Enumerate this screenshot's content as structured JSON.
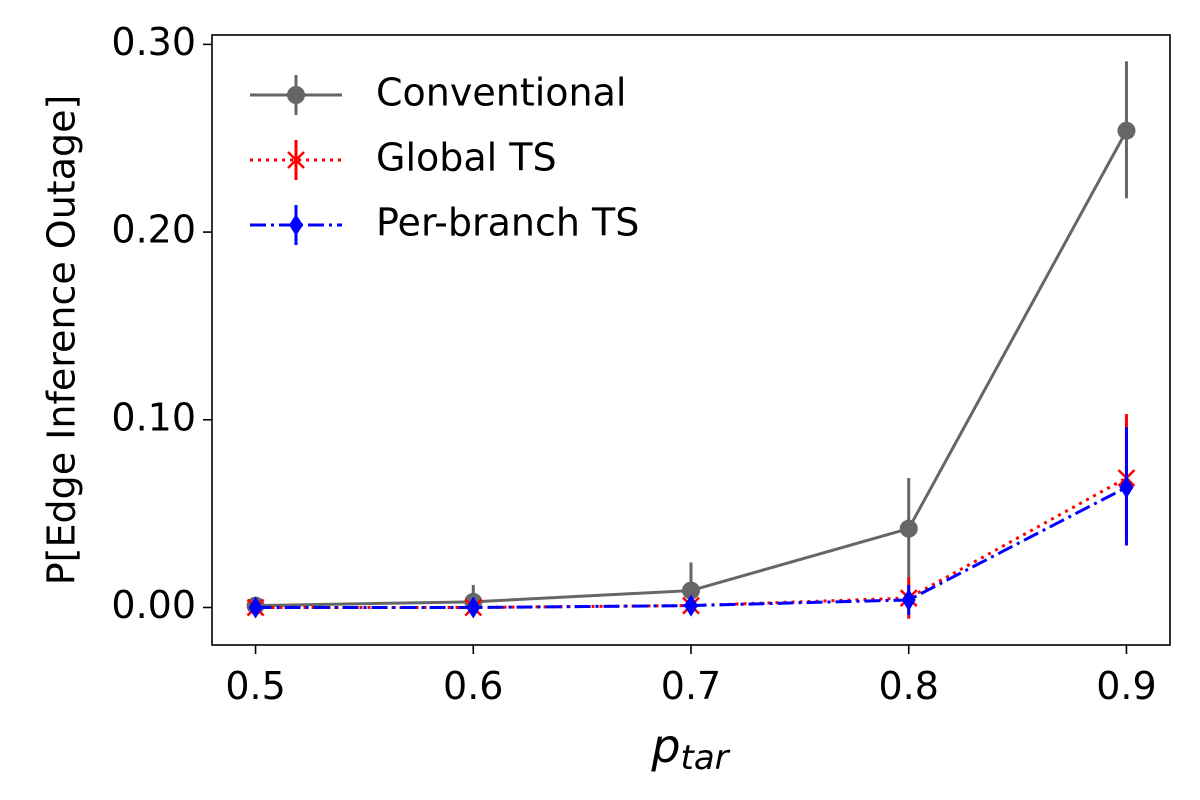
{
  "chart_data": {
    "type": "line",
    "xlabel": "p",
    "xlabel_sub": "tar",
    "ylabel": "P[Edge Inference Outage]",
    "x": [
      0.5,
      0.6,
      0.7,
      0.8,
      0.9
    ],
    "x_ticks": [
      "0.5",
      "0.6",
      "0.7",
      "0.8",
      "0.9"
    ],
    "y_ticks": [
      "0.00",
      "0.10",
      "0.20",
      "0.30"
    ],
    "xlim": [
      0.48,
      0.92
    ],
    "ylim": [
      -0.02,
      0.305
    ],
    "grid": false,
    "legend_position": "top-left",
    "series": [
      {
        "name": "Conventional",
        "color": "#666666",
        "marker": "circle",
        "line_style": "solid",
        "values": [
          0.001,
          0.003,
          0.009,
          0.042,
          0.254
        ],
        "err_low": [
          0.0,
          0.0,
          0.0,
          0.015,
          0.218
        ],
        "err_high": [
          0.003,
          0.012,
          0.024,
          0.069,
          0.291
        ]
      },
      {
        "name": "Global TS",
        "color": "#ff0000",
        "marker": "x",
        "line_style": "dotted",
        "values": [
          0.0,
          0.0,
          0.001,
          0.005,
          0.069
        ],
        "err_low": [
          -0.003,
          -0.003,
          -0.003,
          -0.006,
          0.036
        ],
        "err_high": [
          0.003,
          0.003,
          0.005,
          0.016,
          0.103
        ]
      },
      {
        "name": "Per-branch TS",
        "color": "#0000ff",
        "marker": "diamond",
        "line_style": "dashdot",
        "values": [
          0.0,
          0.0,
          0.001,
          0.004,
          0.064
        ],
        "err_low": [
          -0.002,
          -0.002,
          -0.002,
          -0.004,
          0.033
        ],
        "err_high": [
          0.002,
          0.002,
          0.004,
          0.012,
          0.096
        ]
      }
    ]
  }
}
